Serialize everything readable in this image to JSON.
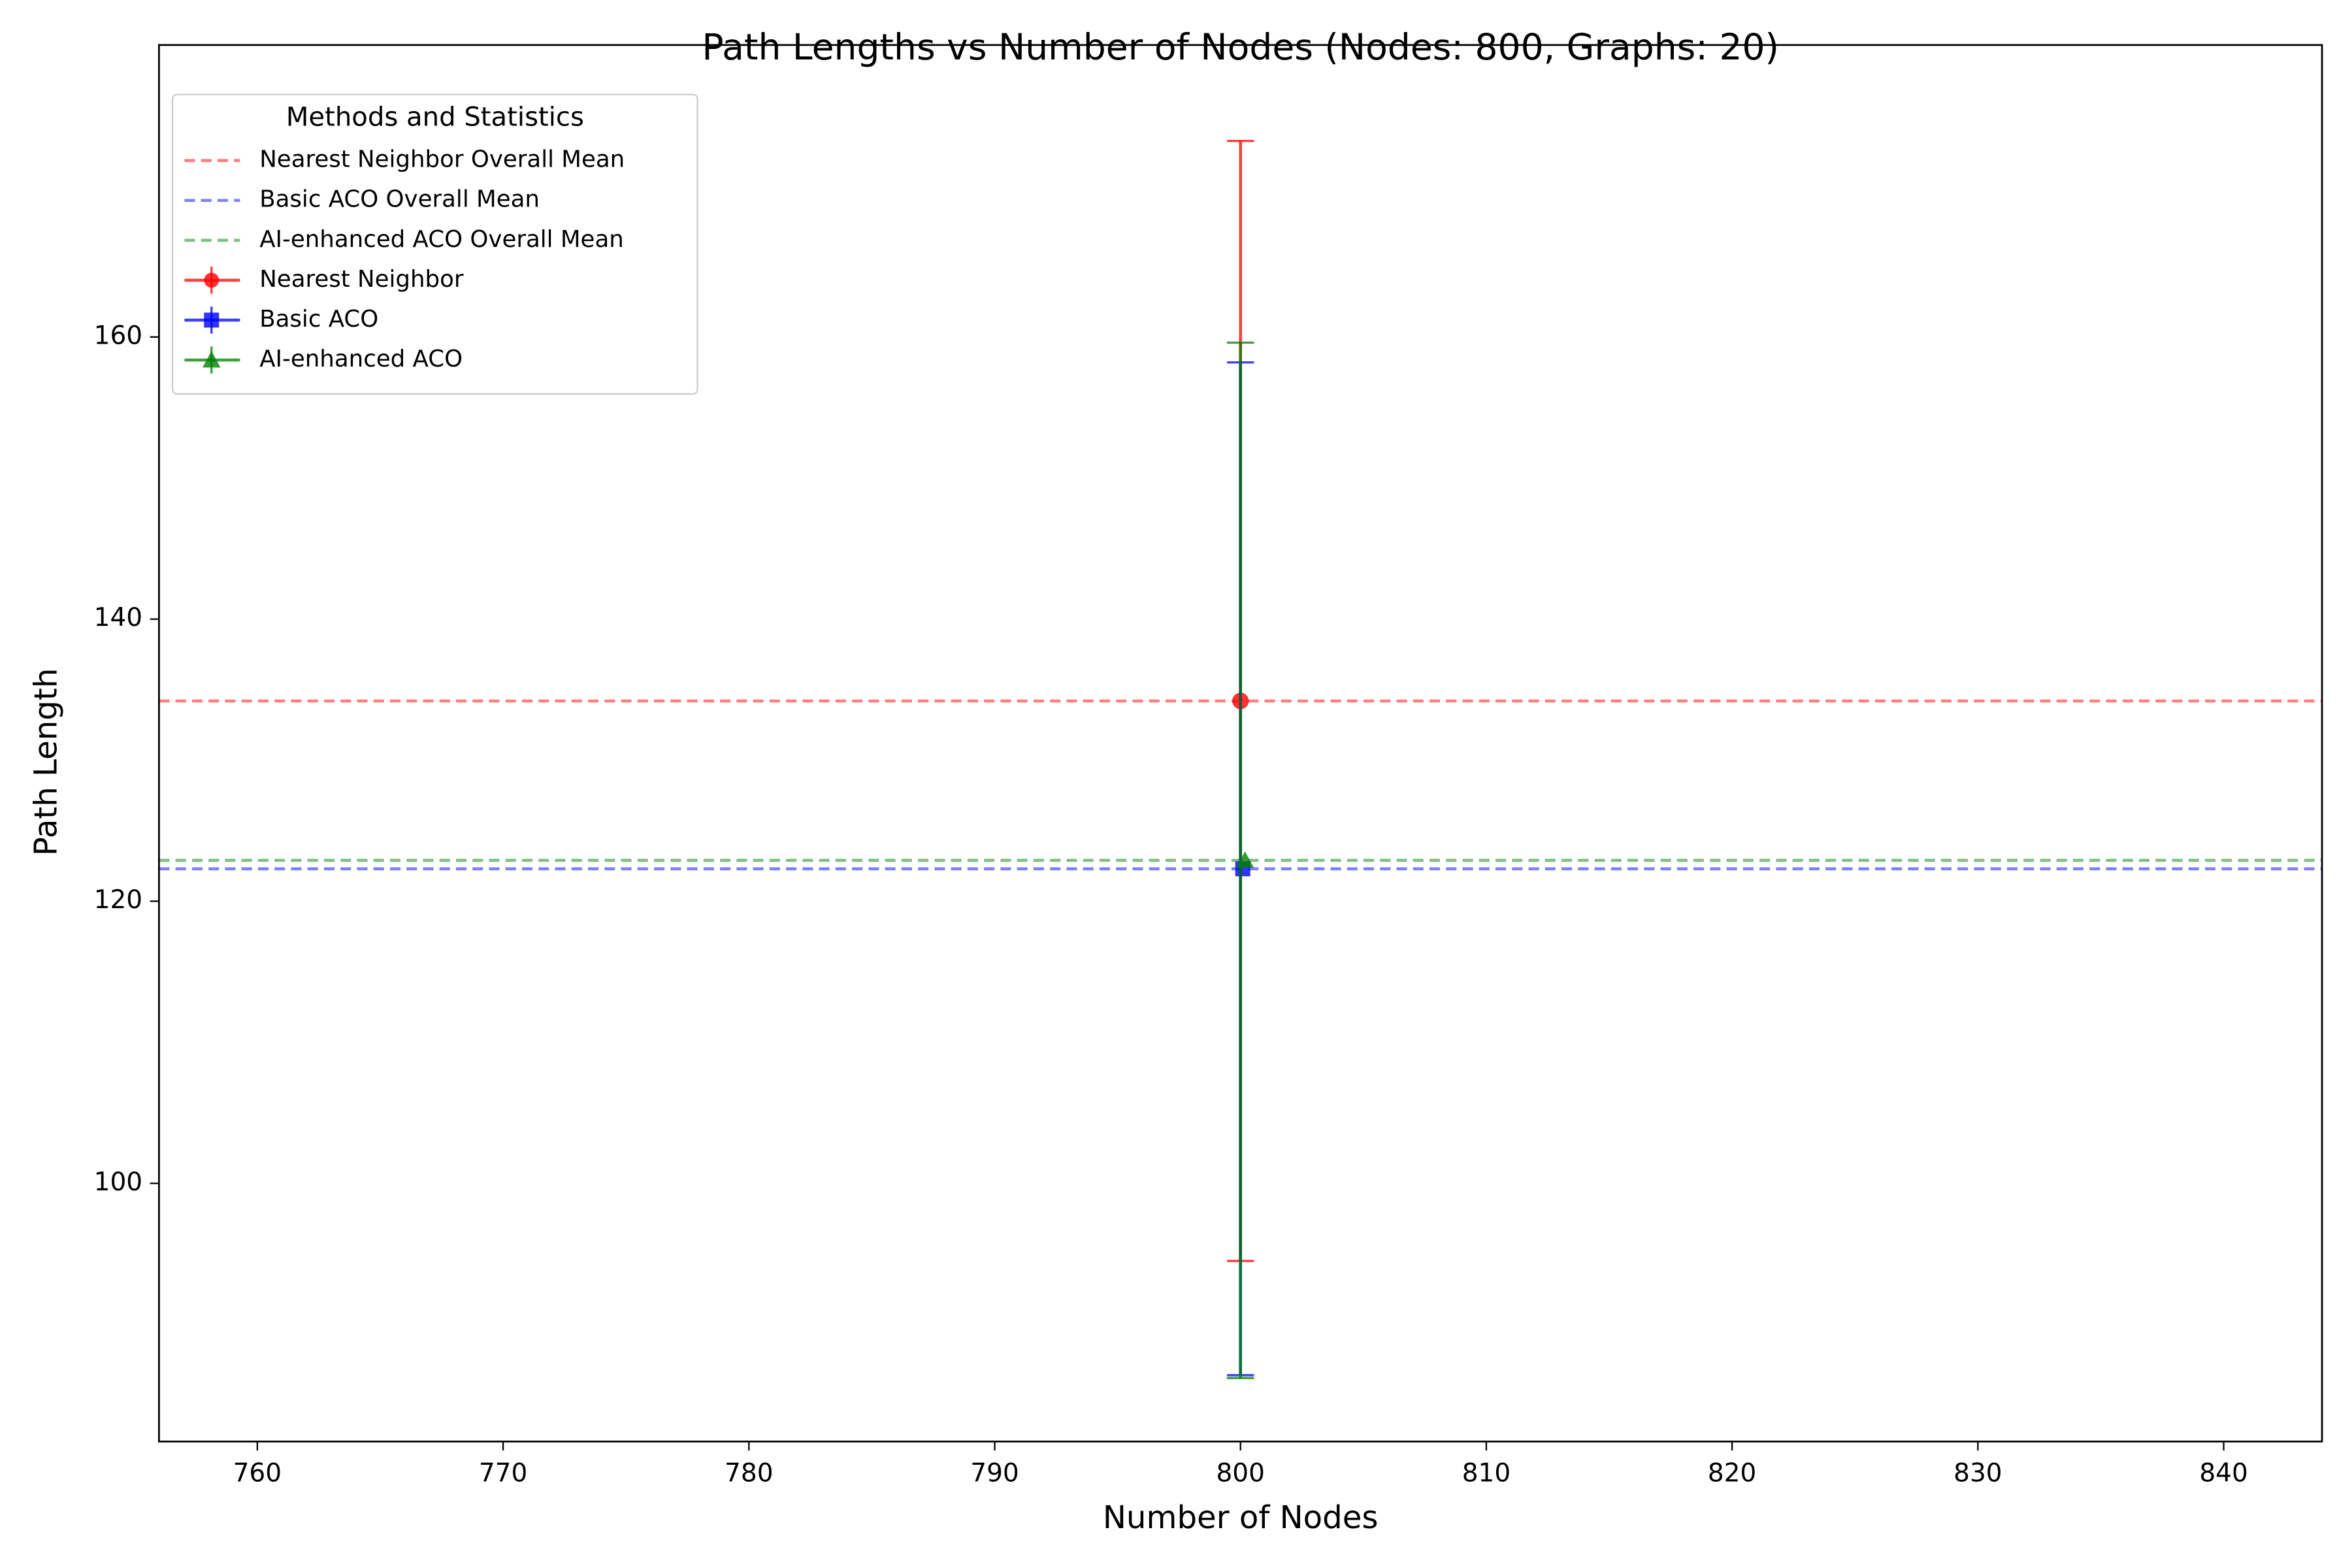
{
  "chart_data": {
    "type": "errorbar",
    "title": "Path Lengths vs Number of Nodes (Nodes: 800, Graphs: 20)",
    "xlabel": "Number of Nodes",
    "ylabel": "Path Length",
    "xlim": [
      756,
      844
    ],
    "xticks": [
      760,
      770,
      780,
      790,
      800,
      810,
      820,
      830,
      840
    ],
    "ylim": [
      81.7,
      180.7
    ],
    "yticks": [
      100,
      120,
      140,
      160
    ],
    "legend_title": "Methods and Statistics",
    "legend": "upper left",
    "reference_lines": [
      {
        "name": "Nearest Neighbor Overall Mean",
        "color": "#ff0000",
        "value": 134.2
      },
      {
        "name": "Basic ACO Overall Mean",
        "color": "#0000ff",
        "value": 122.3
      },
      {
        "name": "AI-enhanced ACO Overall Mean",
        "color": "#008000",
        "value": 122.9
      }
    ],
    "series": [
      {
        "name": "Nearest Neighbor",
        "color": "#ff0000",
        "marker": "circle",
        "x": [
          800
        ],
        "values": [
          134.2
        ],
        "errors": [
          39.7
        ]
      },
      {
        "name": "Basic ACO",
        "color": "#0000ff",
        "marker": "square",
        "x": [
          800
        ],
        "values": [
          122.3
        ],
        "errors": [
          35.9
        ]
      },
      {
        "name": "AI-enhanced ACO",
        "color": "#008000",
        "marker": "triangle",
        "x": [
          800
        ],
        "values": [
          122.9
        ],
        "errors": [
          36.7
        ]
      }
    ]
  }
}
